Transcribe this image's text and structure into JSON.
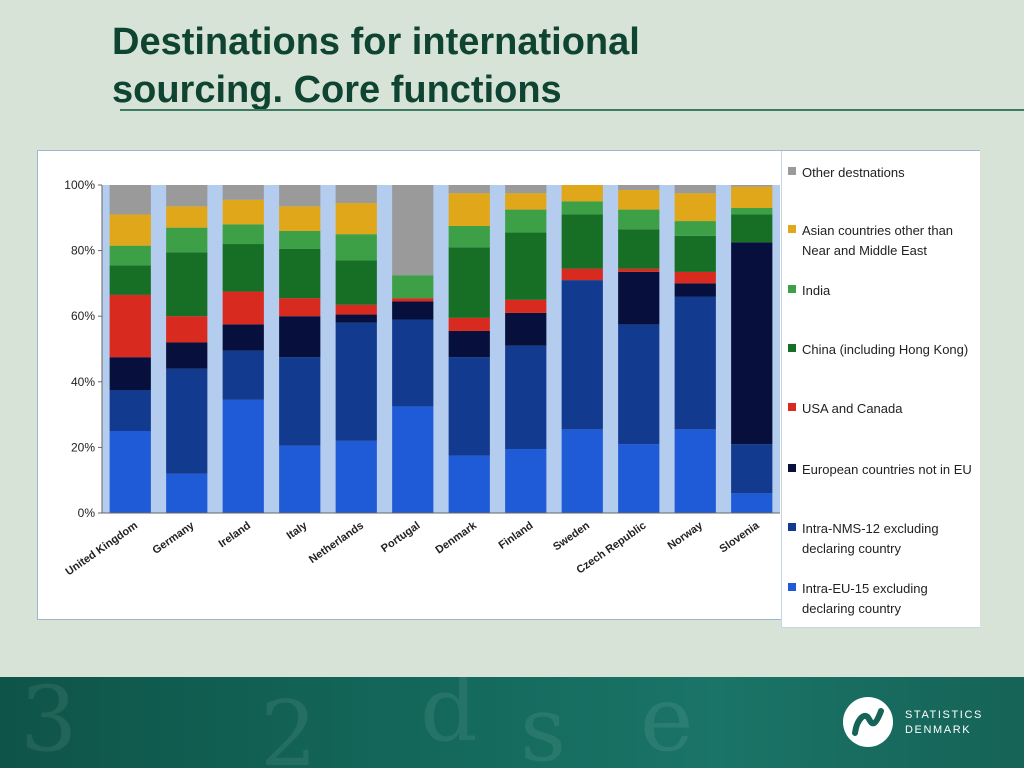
{
  "slide": {
    "title_line1": "Destinations for international",
    "title_line2": "sourcing. Core functions"
  },
  "branding": {
    "line1": "STATISTICS",
    "line2": "DENMARK"
  },
  "chart_data": {
    "type": "bar",
    "stacked": true,
    "percent": true,
    "ylim": [
      0,
      100
    ],
    "yticks": [
      "0%",
      "20%",
      "40%",
      "60%",
      "80%",
      "100%"
    ],
    "categories": [
      "United Kingdom",
      "Germany",
      "Ireland",
      "Italy",
      "Netherlands",
      "Portugal",
      "Denmark",
      "Finland",
      "Sweden",
      "Czech Republic",
      "Norway",
      "Slovenia"
    ],
    "legend_position": "right",
    "series": [
      {
        "name": "Intra-EU-15 excluding declaring country",
        "color": "#1f5bd6",
        "values": [
          25,
          12,
          34.5,
          20.5,
          22,
          32.5,
          17.5,
          19.5,
          25.5,
          21,
          25.5,
          6
        ]
      },
      {
        "name": "Intra-NMS-12 excluding declaring country",
        "color": "#123a8e",
        "values": [
          12.5,
          32,
          15,
          27,
          36,
          26.5,
          30,
          31.5,
          45.5,
          36.5,
          40.5,
          15
        ]
      },
      {
        "name": "European countries not in EU",
        "color": "#070f3c",
        "values": [
          10,
          8,
          8,
          12.5,
          2.5,
          5.5,
          8,
          10,
          0,
          16,
          4,
          61.5
        ]
      },
      {
        "name": "USA and Canada",
        "color": "#d82a1f",
        "values": [
          19,
          8,
          10,
          5.5,
          3,
          1,
          4,
          4,
          3.5,
          1,
          3.5,
          0
        ]
      },
      {
        "name": "China (including Hong Kong)",
        "color": "#166f25",
        "values": [
          9,
          19.5,
          14.5,
          15,
          13.5,
          0,
          21.5,
          20.5,
          16.5,
          12,
          11,
          8.5
        ]
      },
      {
        "name": "India",
        "color": "#3d9f46",
        "values": [
          6,
          7.5,
          6,
          5.5,
          8,
          7,
          6.5,
          7,
          4,
          6,
          4.5,
          2
        ]
      },
      {
        "name": "Asian countries other than Near and Middle East",
        "color": "#e1a71a",
        "values": [
          9.5,
          6.5,
          7.5,
          7.5,
          9.5,
          0,
          10,
          5,
          5,
          6,
          8.5,
          6.5
        ]
      },
      {
        "name": "Other destnations",
        "color": "#9a9a9a",
        "values": [
          9,
          6.5,
          4.5,
          6.5,
          5.5,
          27.5,
          2.5,
          2.5,
          0,
          1.5,
          2.5,
          0.5
        ]
      }
    ]
  }
}
